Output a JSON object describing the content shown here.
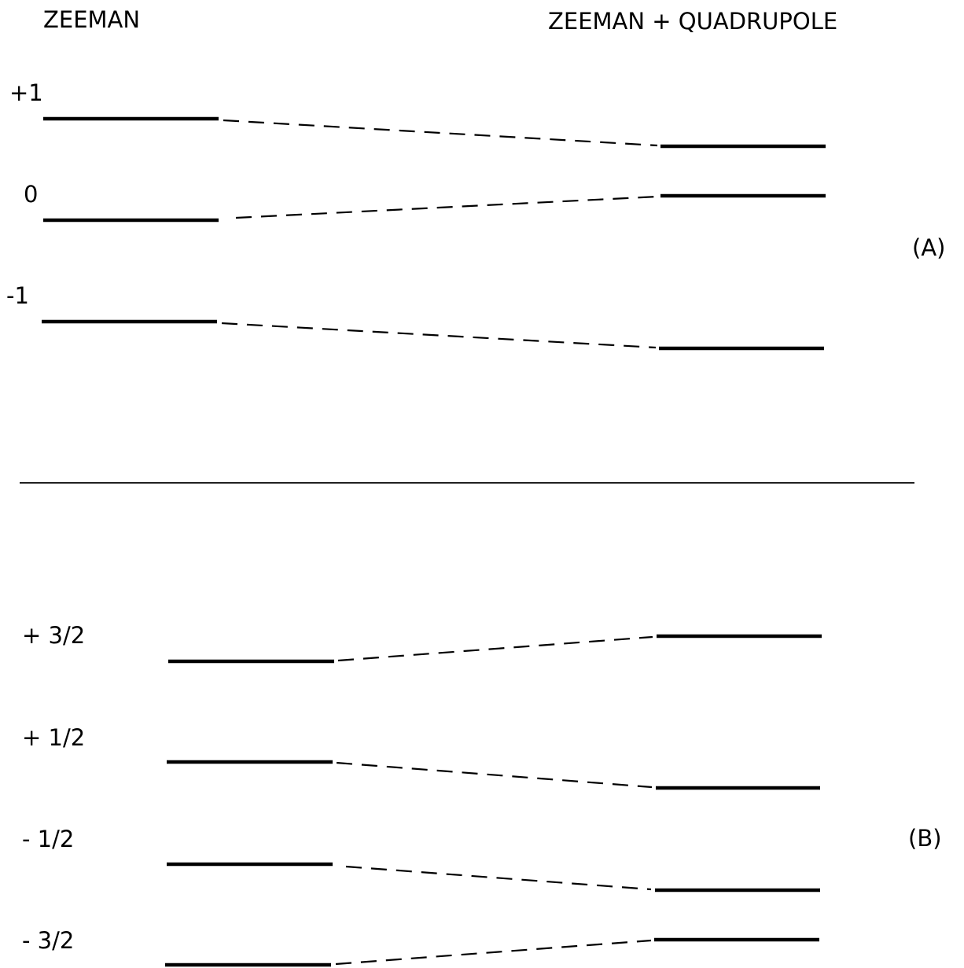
{
  "headers": {
    "left": "ZEEMAN",
    "right": "ZEEMAN + QUADRUPOLE"
  },
  "panel_a": {
    "tag": "(A)",
    "levels": [
      {
        "m": "+1",
        "id": "plus-1"
      },
      {
        "m": "0",
        "id": "zero"
      },
      {
        "m": "-1",
        "id": "minus-1"
      }
    ]
  },
  "panel_b": {
    "tag": "(B)",
    "levels": [
      {
        "m": "+ 3/2",
        "id": "plus-3-2"
      },
      {
        "m": "+ 1/2",
        "id": "plus-1-2"
      },
      {
        "m": "- 1/2",
        "id": "minus-1-2"
      },
      {
        "m": "- 3/2",
        "id": "minus-3-2"
      }
    ]
  },
  "colors": {
    "ink": "#000000",
    "background": "#ffffff"
  }
}
